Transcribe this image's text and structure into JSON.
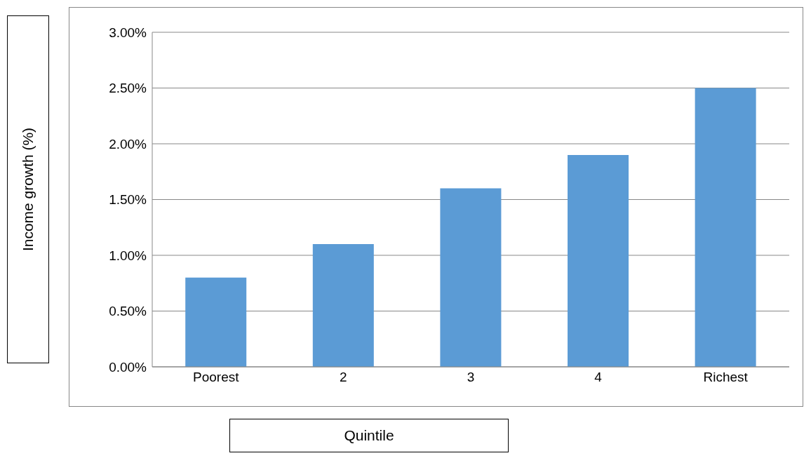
{
  "chart_data": {
    "type": "bar",
    "xlabel": "Quintile",
    "ylabel": "Income growth (%)",
    "categories": [
      "Poorest",
      "2",
      "3",
      "4",
      "Richest"
    ],
    "values": [
      0.8,
      1.1,
      1.6,
      1.9,
      2.5
    ],
    "color": "#5b9bd5",
    "ylim": [
      0,
      3
    ],
    "yticks": [
      {
        "value": 0,
        "label": "0.00%"
      },
      {
        "value": 0.5,
        "label": "0.50%"
      },
      {
        "value": 1,
        "label": "1.00%"
      },
      {
        "value": 1.5,
        "label": "1.50%"
      },
      {
        "value": 2,
        "label": "2.00%"
      },
      {
        "value": 2.5,
        "label": "2.50%"
      },
      {
        "value": 3,
        "label": "3.00%"
      }
    ],
    "grid": "y"
  }
}
